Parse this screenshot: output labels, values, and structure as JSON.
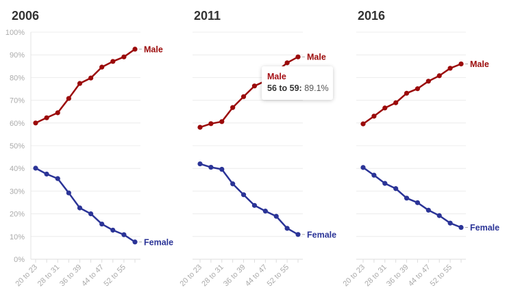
{
  "chart_data": [
    {
      "type": "line",
      "title": "2006",
      "categories": [
        "20 to 23",
        "24 to 27",
        "28 to 31",
        "32 to 35",
        "36 to 39",
        "40 to 43",
        "44 to 47",
        "48 to 51",
        "52 to 55",
        "56 to 59"
      ],
      "tick_labels": [
        "20 to 23",
        "28 to 31",
        "36 to 39",
        "44 to 47",
        "52 to 55"
      ],
      "ylim": [
        0,
        100
      ],
      "yticks": [
        "0%",
        "10%",
        "20%",
        "30%",
        "40%",
        "50%",
        "60%",
        "70%",
        "80%",
        "90%",
        "100%"
      ],
      "grid": true,
      "series": [
        {
          "name": "Male",
          "color": "#9b0a0a",
          "values": [
            60.0,
            62.3,
            64.5,
            70.8,
            77.4,
            79.8,
            84.6,
            87.1,
            89.1,
            92.5
          ]
        },
        {
          "name": "Female",
          "color": "#2b3497",
          "values": [
            40.1,
            37.5,
            35.5,
            29.2,
            22.6,
            20.0,
            15.5,
            12.8,
            10.8,
            7.6
          ]
        }
      ]
    },
    {
      "type": "line",
      "title": "2011",
      "categories": [
        "20 to 23",
        "24 to 27",
        "28 to 31",
        "32 to 35",
        "36 to 39",
        "40 to 43",
        "44 to 47",
        "48 to 51",
        "52 to 55",
        "56 to 59"
      ],
      "tick_labels": [
        "20 to 23",
        "28 to 31",
        "36 to 39",
        "44 to 47",
        "52 to 55"
      ],
      "ylim": [
        0,
        100
      ],
      "grid": true,
      "series": [
        {
          "name": "Male",
          "color": "#9b0a0a",
          "values": [
            58.1,
            59.7,
            60.6,
            66.8,
            71.6,
            76.3,
            78.5,
            82.5,
            86.5,
            89.1
          ]
        },
        {
          "name": "Female",
          "color": "#2b3497",
          "values": [
            42.0,
            40.5,
            39.6,
            33.2,
            28.4,
            23.7,
            21.2,
            18.9,
            13.6,
            10.9
          ]
        }
      ],
      "tooltip": {
        "series": "Male",
        "category": "56 to 59:",
        "value": "89.1%"
      }
    },
    {
      "type": "line",
      "title": "2016",
      "categories": [
        "20 to 23",
        "24 to 27",
        "28 to 31",
        "32 to 35",
        "36 to 39",
        "40 to 43",
        "44 to 47",
        "48 to 51",
        "52 to 55",
        "56 to 59"
      ],
      "tick_labels": [
        "20 to 23",
        "28 to 31",
        "36 to 39",
        "44 to 47",
        "52 to 55"
      ],
      "ylim": [
        0,
        100
      ],
      "grid": true,
      "series": [
        {
          "name": "Male",
          "color": "#9b0a0a",
          "values": [
            59.6,
            63.0,
            66.6,
            68.9,
            73.1,
            75.1,
            78.4,
            80.8,
            84.1,
            86.0
          ]
        },
        {
          "name": "Female",
          "color": "#2b3497",
          "values": [
            40.4,
            37.0,
            33.4,
            31.1,
            26.9,
            24.9,
            21.6,
            19.2,
            15.9,
            14.0
          ]
        }
      ]
    }
  ]
}
